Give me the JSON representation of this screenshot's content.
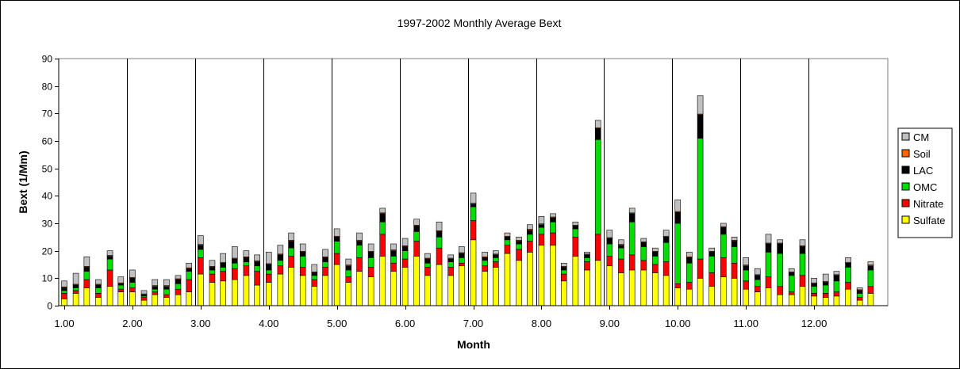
{
  "chart_data": {
    "type": "bar",
    "stacked": true,
    "title": "1997-2002 Monthly Average Bext",
    "xlabel": "Month",
    "ylabel": "Bext (1/Mm)",
    "ylim": [
      0,
      90
    ],
    "yticks": [
      0,
      10,
      20,
      30,
      40,
      50,
      60,
      70,
      80,
      90
    ],
    "xlim": [
      1.0,
      13.0
    ],
    "xticks": [
      "1.00",
      "2.00",
      "3.00",
      "4.00",
      "5.00",
      "6.00",
      "7.00",
      "8.00",
      "9.00",
      "10.00",
      "11.00",
      "12.00"
    ],
    "grid": "vertical lines at each month",
    "legend_position": "right",
    "colors": {
      "Sulfate": "#ffff00",
      "Nitrate": "#ff0000",
      "OMC": "#00dd00",
      "LAC": "#000000",
      "Soil": "#ff6600",
      "CM": "#c0c0c0"
    },
    "legend": [
      "CM",
      "Soil",
      "LAC",
      "OMC",
      "Nitrate",
      "Sulfate"
    ],
    "x": [
      1.0,
      1.17,
      1.33,
      1.5,
      1.67,
      1.83,
      2.0,
      2.17,
      2.33,
      2.5,
      2.67,
      2.83,
      3.0,
      3.17,
      3.33,
      3.5,
      3.67,
      3.83,
      4.0,
      4.17,
      4.33,
      4.5,
      4.67,
      4.83,
      5.0,
      5.17,
      5.33,
      5.5,
      5.67,
      5.83,
      6.0,
      6.17,
      6.33,
      6.5,
      6.67,
      6.83,
      7.0,
      7.17,
      7.33,
      7.5,
      7.67,
      7.83,
      8.0,
      8.17,
      8.33,
      8.5,
      8.67,
      8.83,
      9.0,
      9.17,
      9.33,
      9.5,
      9.67,
      9.83,
      10.0,
      10.17,
      10.33,
      10.5,
      10.67,
      10.83,
      11.0,
      11.17,
      11.33,
      11.5,
      11.67,
      11.83,
      12.0,
      12.17,
      12.33,
      12.5,
      12.67,
      12.83
    ],
    "series": [
      {
        "name": "Sulfate",
        "values": [
          2.5,
          4.5,
          6.5,
          3,
          7,
          5,
          5,
          2,
          4,
          3,
          4,
          5,
          11.5,
          8.5,
          9,
          9.5,
          11,
          7.5,
          8.5,
          11.5,
          14,
          11,
          7,
          11,
          15,
          8.5,
          12.5,
          10.5,
          18,
          12.5,
          14,
          18,
          11,
          15,
          11,
          14.5,
          24,
          12.5,
          14,
          19,
          16.5,
          19.5,
          22,
          22,
          9,
          18,
          13,
          16.5,
          14.5,
          12,
          13,
          13,
          12,
          11,
          6.5,
          6,
          10,
          7,
          10.5,
          10,
          6,
          5,
          6.5,
          4,
          4,
          7,
          3.5,
          3,
          3.5,
          6,
          2,
          4.5
        ]
      },
      {
        "name": "Nitrate",
        "values": [
          2,
          1,
          3,
          1.5,
          6,
          1,
          1.5,
          1,
          1,
          1,
          2,
          4.5,
          6,
          3,
          3.5,
          4,
          3.5,
          5,
          3,
          3,
          4,
          3,
          2.5,
          3,
          4,
          2,
          5,
          3.5,
          8,
          3,
          3,
          5.5,
          3,
          6,
          3,
          1,
          7,
          2,
          2,
          3,
          4,
          4,
          4,
          4.5,
          2.5,
          7,
          3,
          9.5,
          3.5,
          5,
          5.5,
          3.5,
          3,
          5,
          1.5,
          2.5,
          7,
          5,
          7,
          5.5,
          3,
          2,
          4,
          3,
          1,
          4,
          1,
          1.5,
          1.5,
          2.5,
          1,
          2.5
        ]
      },
      {
        "name": "OMC",
        "values": [
          1,
          1,
          3,
          2,
          4,
          1.5,
          2,
          0.5,
          1,
          2,
          2,
          3,
          3,
          1.5,
          1.5,
          2,
          1.5,
          2,
          1.5,
          2,
          3,
          4,
          1.5,
          2,
          4.5,
          2.5,
          4.5,
          3.5,
          4.5,
          2.5,
          3,
          3.5,
          1.5,
          4,
          2,
          2,
          5,
          2,
          1.5,
          2,
          2,
          2.5,
          2.5,
          4,
          1.5,
          3,
          1.5,
          34.5,
          4.5,
          4,
          12,
          5,
          3,
          7,
          22,
          7,
          44,
          6,
          8.5,
          6,
          4,
          2.5,
          9,
          12,
          6,
          8,
          2.5,
          3,
          4,
          5.5,
          1.5,
          6
        ]
      },
      {
        "name": "LAC",
        "values": [
          1,
          1,
          1.5,
          1,
          1,
          0.5,
          1.5,
          0.5,
          1,
          1,
          1.5,
          1,
          1.5,
          1,
          1.5,
          1.5,
          1.5,
          1.5,
          2,
          2,
          2.5,
          1.5,
          1,
          1.5,
          1.5,
          1.5,
          1.5,
          2,
          3,
          2,
          1.5,
          2,
          1.5,
          2,
          1,
          1.5,
          1,
          1,
          1,
          1,
          1,
          1.5,
          1,
          1.5,
          1,
          1,
          1,
          4,
          2,
          1,
          3,
          1.5,
          1.5,
          2,
          4,
          2,
          8.5,
          1.5,
          2.5,
          2,
          1.5,
          1.5,
          3,
          3.5,
          1,
          2.5,
          1,
          1,
          2,
          1.5,
          1,
          1.5
        ]
      },
      {
        "name": "Soil",
        "values": [
          0.3,
          0.3,
          0.3,
          0.3,
          0.3,
          0.3,
          0.3,
          0.3,
          0.3,
          0.3,
          0.3,
          0.3,
          0.3,
          0.3,
          0.3,
          0.3,
          0.3,
          0.3,
          0.3,
          0.3,
          0.3,
          0.3,
          0.3,
          0.3,
          0.3,
          0.3,
          0.3,
          0.3,
          0.3,
          0.3,
          0.3,
          0.3,
          0.3,
          0.3,
          0.3,
          0.3,
          0.3,
          0.3,
          0.3,
          0.3,
          0.3,
          0.3,
          0.3,
          0.3,
          0.3,
          0.3,
          0.3,
          0.3,
          0.3,
          0.3,
          0.3,
          0.3,
          0.3,
          0.3,
          0.3,
          0.3,
          0.3,
          0.3,
          0.3,
          0.3,
          0.3,
          0.3,
          0.3,
          0.3,
          0.3,
          0.3,
          0.3,
          0.3,
          0.3,
          0.3,
          0.3,
          0.3
        ]
      },
      {
        "name": "CM",
        "values": [
          2.2,
          4,
          3.5,
          1.7,
          1.7,
          2.2,
          2.7,
          1.2,
          2.2,
          2.2,
          1.2,
          1.7,
          3.2,
          2.2,
          3.2,
          4.2,
          2.2,
          2.2,
          4.2,
          3.2,
          2.7,
          2.7,
          2.7,
          2.7,
          2.7,
          2.2,
          2.7,
          2.7,
          1.7,
          2.2,
          2.7,
          2.2,
          1.7,
          3.2,
          1.2,
          2.2,
          3.7,
          1.7,
          1.2,
          1.2,
          1.2,
          1.7,
          2.7,
          1.2,
          1.2,
          1.2,
          0.7,
          2.7,
          2.7,
          1.7,
          1.7,
          1.2,
          1.2,
          2.2,
          4.2,
          1.7,
          6.7,
          1.2,
          1.2,
          1.2,
          2.7,
          2.2,
          3.2,
          1.2,
          1.2,
          2.2,
          1.7,
          2.7,
          1.2,
          1.7,
          0.7,
          1.2
        ]
      }
    ]
  }
}
